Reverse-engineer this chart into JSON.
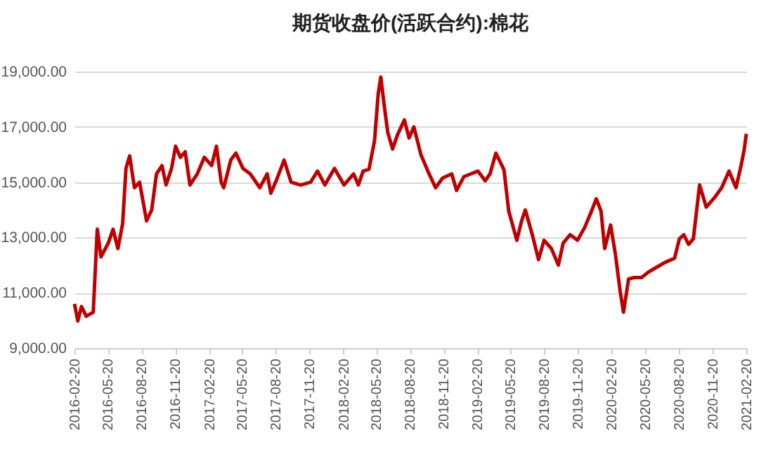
{
  "chart_data": {
    "type": "line",
    "title": "期货收盘价(活跃合约):棉花",
    "x": [
      "2016-02-20",
      "2016-02-29",
      "2016-03-10",
      "2016-03-23",
      "2016-04-11",
      "2016-04-22",
      "2016-05-02",
      "2016-05-22",
      "2016-06-04",
      "2016-06-17",
      "2016-06-30",
      "2016-07-09",
      "2016-07-19",
      "2016-08-01",
      "2016-08-15",
      "2016-09-03",
      "2016-09-17",
      "2016-09-30",
      "2016-10-15",
      "2016-10-26",
      "2016-11-10",
      "2016-11-21",
      "2016-12-04",
      "2016-12-17",
      "2016-12-30",
      "2017-01-19",
      "2017-02-07",
      "2017-02-27",
      "2017-03-12",
      "2017-03-25",
      "2017-04-01",
      "2017-04-20",
      "2017-05-04",
      "2017-05-23",
      "2017-06-12",
      "2017-07-08",
      "2017-07-28",
      "2017-08-07",
      "2017-08-23",
      "2017-09-12",
      "2017-10-01",
      "2017-10-27",
      "2017-11-23",
      "2017-12-12",
      "2018-01-01",
      "2018-01-27",
      "2018-02-22",
      "2018-03-20",
      "2018-04-02",
      "2018-04-15",
      "2018-05-01",
      "2018-05-16",
      "2018-05-26",
      "2018-06-02",
      "2018-06-12",
      "2018-06-21",
      "2018-07-04",
      "2018-07-17",
      "2018-08-05",
      "2018-08-18",
      "2018-08-31",
      "2018-09-19",
      "2018-10-08",
      "2018-10-29",
      "2018-11-17",
      "2018-12-12",
      "2018-12-25",
      "2019-01-14",
      "2019-02-02",
      "2019-02-21",
      "2019-03-13",
      "2019-03-26",
      "2019-04-11",
      "2019-05-03",
      "2019-05-16",
      "2019-06-07",
      "2019-06-20",
      "2019-06-30",
      "2019-07-19",
      "2019-08-05",
      "2019-08-20",
      "2019-09-09",
      "2019-09-28",
      "2019-10-11",
      "2019-10-30",
      "2019-11-19",
      "2019-12-08",
      "2019-12-27",
      "2020-01-09",
      "2020-01-22",
      "2020-02-01",
      "2020-02-17",
      "2020-03-01",
      "2020-03-14",
      "2020-03-23",
      "2020-04-06",
      "2020-04-21",
      "2020-05-11",
      "2020-05-30",
      "2020-06-18",
      "2020-07-14",
      "2020-08-09",
      "2020-08-22",
      "2020-09-03",
      "2020-09-16",
      "2020-09-29",
      "2020-10-16",
      "2020-11-03",
      "2020-11-26",
      "2020-12-15",
      "2021-01-04",
      "2021-01-23",
      "2021-02-05",
      "2021-02-14",
      "2021-02-20"
    ],
    "series": [
      {
        "color": "#c00000",
        "values": [
          10600,
          9980,
          10500,
          10150,
          10300,
          13300,
          12300,
          12800,
          13300,
          12600,
          13500,
          15500,
          15950,
          14800,
          15000,
          13600,
          14000,
          15300,
          15600,
          14900,
          15500,
          16300,
          15900,
          16100,
          14900,
          15300,
          15900,
          15600,
          16300,
          15000,
          14800,
          15800,
          16050,
          15500,
          15300,
          14800,
          15300,
          14600,
          15100,
          15800,
          15000,
          14900,
          15000,
          15400,
          14900,
          15500,
          14900,
          15300,
          14900,
          15400,
          15470,
          16500,
          18200,
          18800,
          17700,
          16800,
          16200,
          16700,
          17250,
          16600,
          17000,
          16000,
          15400,
          14800,
          15150,
          15300,
          14700,
          15200,
          15300,
          15400,
          15050,
          15300,
          16050,
          15450,
          13950,
          12900,
          13600,
          14000,
          13100,
          12200,
          12900,
          12600,
          12000,
          12800,
          13100,
          12900,
          13350,
          13950,
          14400,
          13950,
          12600,
          13450,
          12400,
          11050,
          10300,
          11500,
          11550,
          11550,
          11750,
          11900,
          12100,
          12250,
          12950,
          13100,
          12750,
          12950,
          14900,
          14100,
          14450,
          14800,
          15400,
          14800,
          15550,
          16150,
          16750
        ]
      }
    ],
    "xlim": [
      "2016-02-20",
      "2021-02-20"
    ],
    "xticks": [
      "2016-02-20",
      "2016-05-20",
      "2016-08-20",
      "2016-11-20",
      "2017-02-20",
      "2017-05-20",
      "2017-08-20",
      "2017-11-20",
      "2018-02-20",
      "2018-05-20",
      "2018-08-20",
      "2018-11-20",
      "2019-02-20",
      "2019-05-20",
      "2019-08-20",
      "2019-11-20",
      "2020-02-20",
      "2020-05-20",
      "2020-08-20",
      "2020-11-20",
      "2021-02-20"
    ],
    "ylim": [
      9000,
      19000
    ],
    "yticks": [
      {
        "value": 9000,
        "label": "9,000.00"
      },
      {
        "value": 11000,
        "label": "11,000.00"
      },
      {
        "value": 13000,
        "label": "13,000.00"
      },
      {
        "value": 15000,
        "label": "15,000.00"
      },
      {
        "value": 17000,
        "label": "17,000.00"
      },
      {
        "value": 19000,
        "label": "19,000.00"
      }
    ],
    "grid": "y",
    "legend": false
  }
}
